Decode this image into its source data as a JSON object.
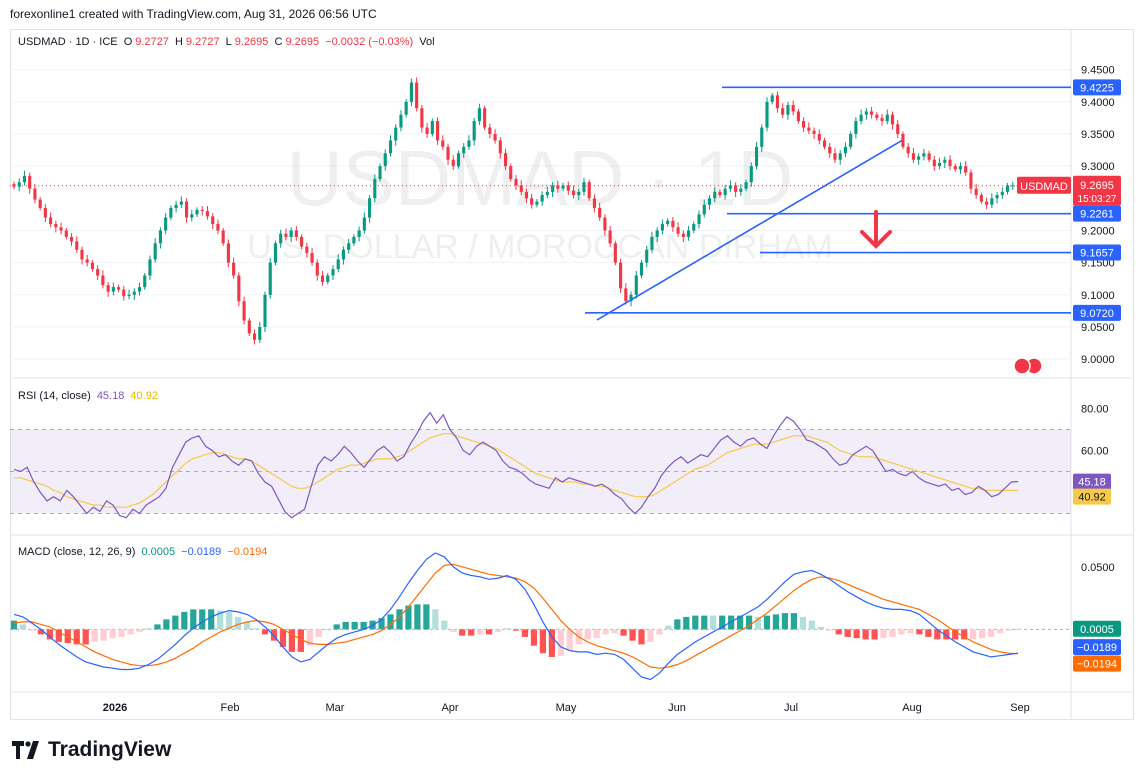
{
  "header": {
    "credit": "forexonline1 created with TradingView.com, Aug 31, 2026 06:56 UTC",
    "symbol_line": "USDMAD · 1D · ICE",
    "o_label": "O",
    "o": "9.2727",
    "h_label": "H",
    "h": "9.2727",
    "l_label": "L",
    "l": "9.2695",
    "c_label": "C",
    "c": "9.2695",
    "change": "−0.0032 (−0.03%)",
    "vol": "Vol"
  },
  "watermark": {
    "ticker": "USDMAD · 1D",
    "name": "U.S. DOLLAR / MOROCCAN DIRHAM"
  },
  "brand": "TradingView",
  "colors": {
    "up": "#089981",
    "down": "#f23645",
    "line": "#2962ff",
    "rsi": "#7e57c2",
    "rsi_ma": "#f7c948",
    "signal": "#ff6d00"
  },
  "chart_data": [
    {
      "type": "candlestick",
      "title": "USDMAD · 1D · ICE",
      "y_ticks": [
        "9.4500",
        "9.4000",
        "9.3500",
        "9.3000",
        "9.2000",
        "9.1500",
        "9.1000",
        "9.0500",
        "9.0000"
      ],
      "ylim": [
        8.98,
        9.465
      ],
      "x_ticks": [
        "2026",
        "Feb",
        "Mar",
        "Apr",
        "May",
        "Jun",
        "Jul",
        "Aug",
        "Sep"
      ],
      "closes": [
        9.268,
        9.275,
        9.285,
        9.265,
        9.248,
        9.235,
        9.22,
        9.21,
        9.205,
        9.2,
        9.19,
        9.183,
        9.17,
        9.155,
        9.15,
        9.14,
        9.13,
        9.115,
        9.105,
        9.112,
        9.108,
        9.098,
        9.1,
        9.105,
        9.112,
        9.13,
        9.155,
        9.18,
        9.2,
        9.22,
        9.235,
        9.24,
        9.245,
        9.22,
        9.225,
        9.232,
        9.23,
        9.222,
        9.21,
        9.2,
        9.18,
        9.15,
        9.13,
        9.09,
        9.06,
        9.04,
        9.03,
        9.05,
        9.1,
        9.15,
        9.18,
        9.195,
        9.19,
        9.2,
        9.19,
        9.175,
        9.165,
        9.15,
        9.13,
        9.12,
        9.13,
        9.14,
        9.155,
        9.17,
        9.18,
        9.19,
        9.2,
        9.22,
        9.25,
        9.28,
        9.3,
        9.32,
        9.34,
        9.36,
        9.38,
        9.4,
        9.43,
        9.39,
        9.36,
        9.35,
        9.37,
        9.34,
        9.33,
        9.31,
        9.3,
        9.32,
        9.33,
        9.34,
        9.37,
        9.39,
        9.36,
        9.35,
        9.34,
        9.32,
        9.3,
        9.28,
        9.27,
        9.26,
        9.25,
        9.24,
        9.245,
        9.255,
        9.26,
        9.27,
        9.265,
        9.27,
        9.262,
        9.255,
        9.26,
        9.275,
        9.25,
        9.235,
        9.22,
        9.2,
        9.18,
        9.15,
        9.11,
        9.09,
        9.1,
        9.13,
        9.15,
        9.17,
        9.19,
        9.2,
        9.21,
        9.215,
        9.205,
        9.195,
        9.19,
        9.2,
        9.21,
        9.225,
        9.24,
        9.25,
        9.26,
        9.255,
        9.265,
        9.27,
        9.26,
        9.265,
        9.275,
        9.3,
        9.33,
        9.36,
        9.4,
        9.41,
        9.39,
        9.38,
        9.395,
        9.385,
        9.37,
        9.36,
        9.355,
        9.35,
        9.34,
        9.33,
        9.32,
        9.31,
        9.32,
        9.33,
        9.35,
        9.37,
        9.38,
        9.385,
        9.38,
        9.375,
        9.37,
        9.38,
        9.365,
        9.35,
        9.33,
        9.32,
        9.31,
        9.315,
        9.32,
        9.31,
        9.3,
        9.305,
        9.31,
        9.3,
        9.295,
        9.3,
        9.29,
        9.265,
        9.255,
        9.245,
        9.24,
        9.25,
        9.255,
        9.26,
        9.27,
        9.27,
        9.2695
      ],
      "horizontal_levels": [
        "9.4225",
        "9.2261",
        "9.1657",
        "9.0720"
      ],
      "last_price": "9.2695",
      "last_label": "USDMAD",
      "countdown": "15:03:27"
    },
    {
      "type": "line",
      "title": "RSI (14, close)",
      "legend_values": [
        "45.18",
        "40.92"
      ],
      "y_ticks": [
        "80.00",
        "60.00"
      ],
      "bands": [
        70,
        50,
        30
      ],
      "ylim": [
        25,
        85
      ],
      "rsi": [
        51,
        50,
        52,
        45,
        40,
        36,
        38,
        36,
        41,
        38,
        34,
        30,
        33,
        31,
        36,
        34,
        29,
        28,
        32,
        30,
        34,
        36,
        38,
        42,
        52,
        58,
        64,
        66,
        67,
        62,
        60,
        57,
        58,
        55,
        53,
        56,
        55,
        49,
        45,
        43,
        37,
        31,
        28,
        30,
        32,
        43,
        53,
        57,
        55,
        58,
        62,
        59,
        55,
        52,
        56,
        60,
        62,
        59,
        55,
        57,
        63,
        68,
        74,
        78,
        73,
        77,
        70,
        66,
        60,
        58,
        62,
        64,
        62,
        60,
        55,
        52,
        51,
        49,
        46,
        44,
        43,
        42,
        47,
        45,
        47,
        46,
        45,
        44,
        43,
        44,
        42,
        39,
        37,
        33,
        30,
        33,
        38,
        42,
        48,
        52,
        55,
        57,
        54,
        56,
        58,
        57,
        61,
        65,
        67,
        64,
        62,
        65,
        66,
        63,
        61,
        67,
        72,
        76,
        74,
        70,
        65,
        64,
        62,
        60,
        56,
        53,
        54,
        58,
        60,
        62,
        60,
        55,
        50,
        51,
        49,
        48,
        50,
        47,
        45,
        44,
        43,
        44,
        41,
        42,
        39,
        40,
        43,
        41,
        38,
        39,
        42,
        45,
        45.18
      ],
      "rsi_ma": [
        47,
        47,
        46,
        45,
        44,
        43,
        41,
        40,
        38,
        37,
        36,
        35,
        34,
        34,
        33,
        33,
        33,
        33,
        34,
        35,
        37,
        39,
        42,
        45,
        48,
        51,
        54,
        56,
        57,
        58,
        59,
        59,
        58,
        57,
        56,
        56,
        55,
        53,
        51,
        49,
        47,
        45,
        43,
        42,
        42,
        43,
        45,
        47,
        49,
        51,
        52,
        53,
        53,
        54,
        55,
        56,
        56,
        56,
        57,
        58,
        60,
        62,
        64,
        66,
        67,
        68,
        68,
        67,
        66,
        65,
        64,
        63,
        62,
        61,
        59,
        57,
        55,
        53,
        51,
        49,
        48,
        47,
        46,
        45,
        45,
        45,
        44,
        44,
        43,
        43,
        42,
        41,
        40,
        39,
        38,
        38,
        38,
        39,
        41,
        43,
        45,
        47,
        49,
        51,
        52,
        53,
        55,
        57,
        59,
        60,
        61,
        62,
        63,
        63,
        63,
        64,
        65,
        66,
        67,
        67,
        67,
        66,
        65,
        64,
        62,
        60,
        59,
        58,
        57,
        57,
        57,
        56,
        55,
        54,
        53,
        52,
        51,
        50,
        49,
        48,
        47,
        46,
        45,
        44,
        43,
        42,
        42,
        41,
        41,
        41,
        41,
        41,
        40.92
      ]
    },
    {
      "type": "line",
      "title": "MACD (close, 12, 26, 9)",
      "legend_values": [
        "0.0005",
        "−0.0189",
        "−0.0194"
      ],
      "y_ticks": [
        "0.0500"
      ],
      "ylim": [
        -0.05,
        0.065
      ],
      "macd": [
        0.012,
        0.01,
        0.005,
        0.0,
        -0.006,
        -0.012,
        -0.017,
        -0.022,
        -0.026,
        -0.028,
        -0.03,
        -0.031,
        -0.032,
        -0.032,
        -0.031,
        -0.028,
        -0.024,
        -0.018,
        -0.012,
        -0.005,
        0.001,
        0.006,
        0.01,
        0.013,
        0.015,
        0.014,
        0.012,
        0.008,
        0.002,
        -0.005,
        -0.014,
        -0.022,
        -0.026,
        -0.024,
        -0.018,
        -0.012,
        -0.007,
        -0.004,
        -0.002,
        0.0,
        0.003,
        0.008,
        0.016,
        0.026,
        0.037,
        0.047,
        0.056,
        0.061,
        0.058,
        0.05,
        0.045,
        0.043,
        0.042,
        0.04,
        0.041,
        0.043,
        0.04,
        0.032,
        0.02,
        0.006,
        -0.006,
        -0.014,
        -0.017,
        -0.018,
        -0.018,
        -0.02,
        -0.019,
        -0.02,
        -0.024,
        -0.031,
        -0.038,
        -0.04,
        -0.035,
        -0.027,
        -0.02,
        -0.015,
        -0.01,
        -0.006,
        -0.002,
        0.002,
        0.006,
        0.01,
        0.014,
        0.018,
        0.024,
        0.031,
        0.038,
        0.044,
        0.046,
        0.047,
        0.044,
        0.04,
        0.035,
        0.03,
        0.026,
        0.022,
        0.019,
        0.017,
        0.016,
        0.016,
        0.015,
        0.012,
        0.006,
        0.0,
        -0.005,
        -0.01,
        -0.014,
        -0.018,
        -0.02,
        -0.022,
        -0.021,
        -0.02,
        -0.019
      ],
      "signal": [
        0.005,
        0.006,
        0.006,
        0.004,
        0.002,
        -0.002,
        -0.006,
        -0.01,
        -0.014,
        -0.018,
        -0.021,
        -0.024,
        -0.026,
        -0.028,
        -0.029,
        -0.029,
        -0.028,
        -0.026,
        -0.023,
        -0.019,
        -0.015,
        -0.01,
        -0.006,
        -0.002,
        0.001,
        0.004,
        0.006,
        0.007,
        0.006,
        0.004,
        0.0,
        -0.004,
        -0.008,
        -0.011,
        -0.012,
        -0.012,
        -0.011,
        -0.01,
        -0.008,
        -0.006,
        -0.004,
        -0.001,
        0.004,
        0.01,
        0.018,
        0.027,
        0.036,
        0.045,
        0.051,
        0.052,
        0.05,
        0.048,
        0.046,
        0.044,
        0.043,
        0.042,
        0.041,
        0.038,
        0.033,
        0.025,
        0.016,
        0.007,
        0.0,
        -0.006,
        -0.01,
        -0.013,
        -0.015,
        -0.017,
        -0.019,
        -0.022,
        -0.026,
        -0.03,
        -0.031,
        -0.03,
        -0.028,
        -0.025,
        -0.021,
        -0.017,
        -0.013,
        -0.009,
        -0.005,
        -0.001,
        0.003,
        0.008,
        0.013,
        0.019,
        0.025,
        0.031,
        0.036,
        0.04,
        0.042,
        0.041,
        0.039,
        0.036,
        0.033,
        0.03,
        0.027,
        0.024,
        0.022,
        0.02,
        0.018,
        0.016,
        0.012,
        0.008,
        0.003,
        -0.002,
        -0.006,
        -0.01,
        -0.013,
        -0.016,
        -0.018,
        -0.019,
        -0.0194
      ]
    }
  ],
  "rsi_legend": {
    "title": "RSI (14, close)",
    "v1": "45.18",
    "v2": "40.92"
  },
  "macd_legend": {
    "title": "MACD (close, 12, 26, 9)",
    "v1": "0.0005",
    "v2": "−0.0189",
    "v3": "−0.0194"
  }
}
